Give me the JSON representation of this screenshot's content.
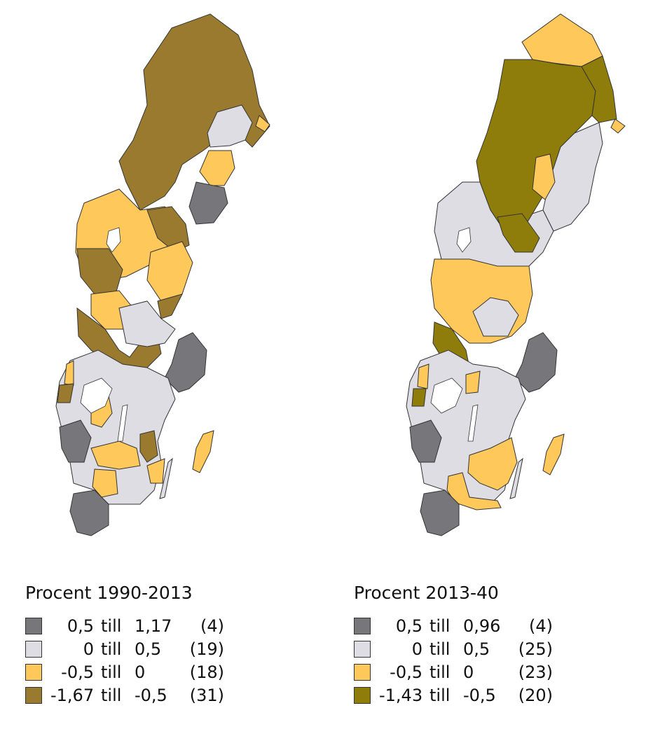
{
  "maps": [
    {
      "legend_title": "Procent 1990-2013",
      "classes": [
        {
          "from": "0,5",
          "till": "till",
          "to": "1,17",
          "count": "(4)",
          "color": "#77767b"
        },
        {
          "from": "0",
          "till": "till",
          "to": "0,5",
          "count": "(19)",
          "color": "#deddE3"
        },
        {
          "from": "-0,5",
          "till": "till",
          "to": "0",
          "count": "(18)",
          "color": "#fec85a"
        },
        {
          "from": "-1,67",
          "till": "till",
          "to": "-0,5",
          "count": "(31)",
          "color": "#9a7a2e"
        }
      ]
    },
    {
      "legend_title": "Procent 2013-40",
      "classes": [
        {
          "from": "0,5",
          "till": "till",
          "to": "0,96",
          "count": "(4)",
          "color": "#77767b"
        },
        {
          "from": "0",
          "till": "till",
          "to": "0,5",
          "count": "(25)",
          "color": "#deddE3"
        },
        {
          "from": "-0,5",
          "till": "till",
          "to": "0",
          "count": "(23)",
          "color": "#fec85a"
        },
        {
          "from": "-1,43",
          "till": "till",
          "to": "-0,5",
          "count": "(20)",
          "color": "#8e7d0a"
        }
      ]
    }
  ]
}
